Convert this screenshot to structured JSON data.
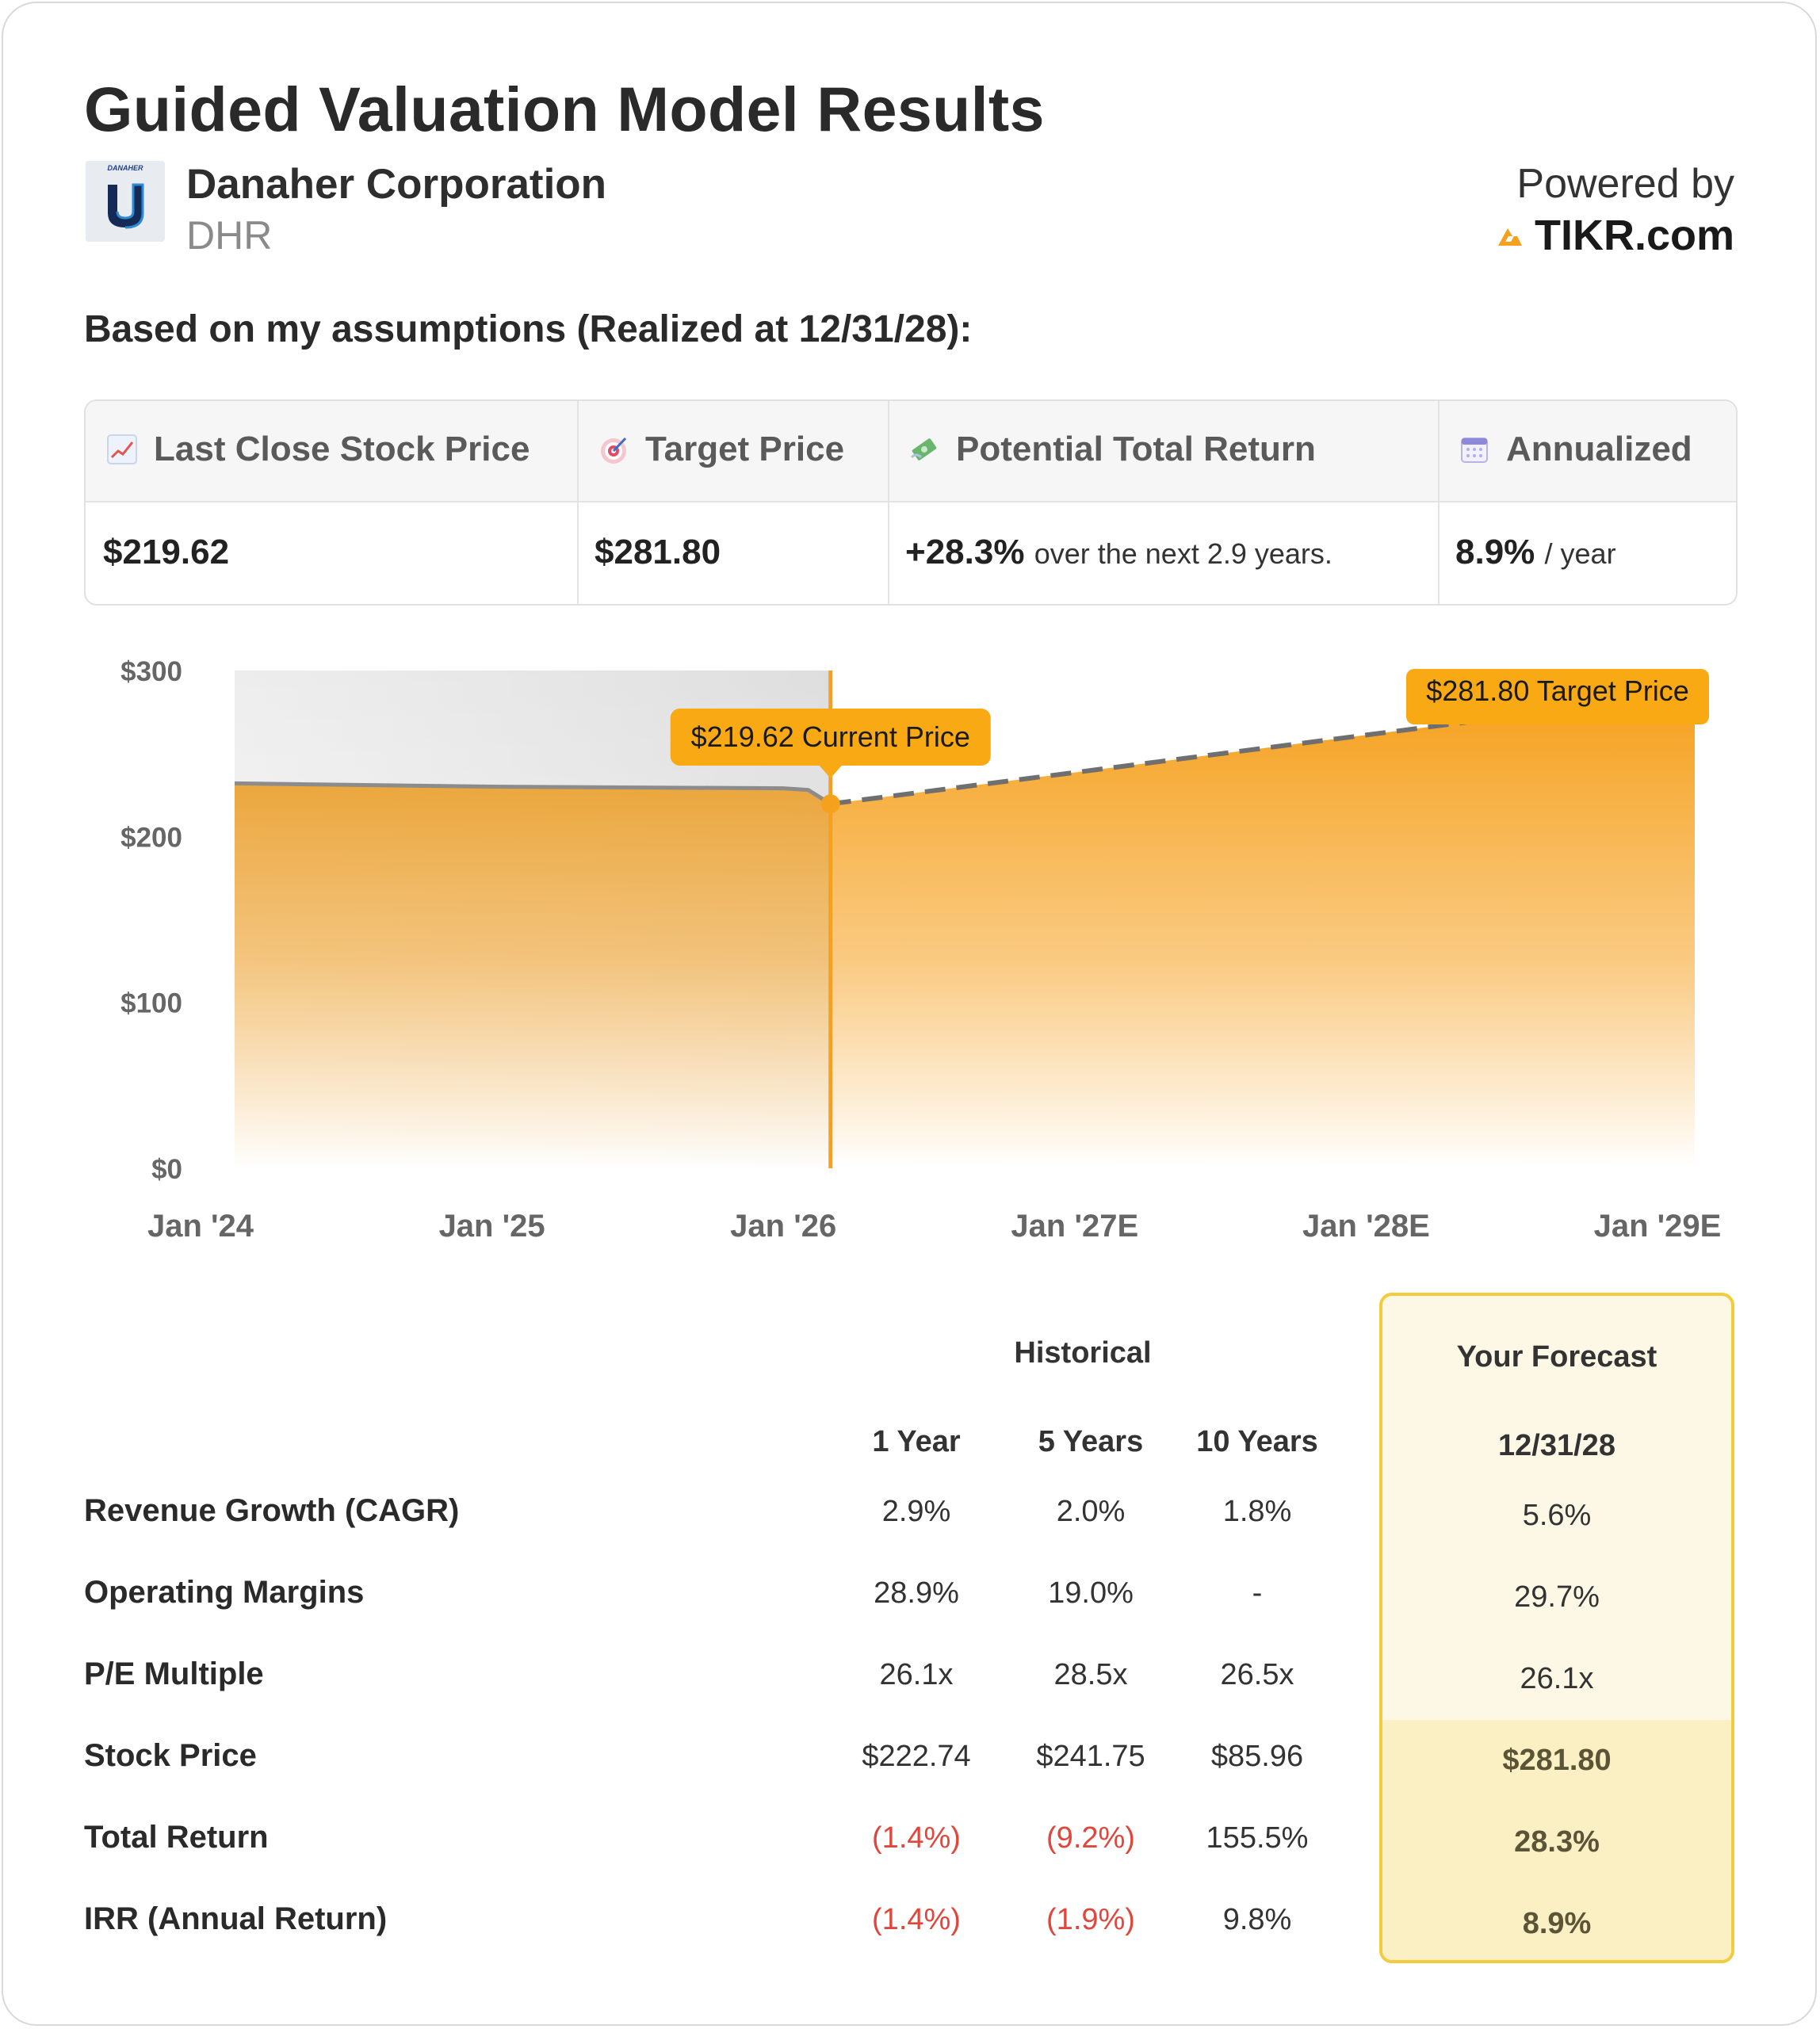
{
  "title": "Guided Valuation Model Results",
  "company": {
    "name": "Danaher Corporation",
    "ticker": "DHR",
    "logo_text": "DANAHER",
    "logo_letter": "U"
  },
  "powered": {
    "label": "Powered by",
    "brand": "TIKR.com"
  },
  "assumption_text": "Based on my assumptions (Realized at 12/31/28):",
  "stats": {
    "last_close": {
      "label": "Last Close Stock Price",
      "value": "$219.62",
      "icon": "chart-increasing-icon"
    },
    "target": {
      "label": "Target Price",
      "value": "$281.80",
      "icon": "target-icon"
    },
    "total_return": {
      "label": "Potential Total Return",
      "value": "+28.3%",
      "suffix": "over the next 2.9 years.",
      "icon": "money-wings-icon"
    },
    "annualized": {
      "label": "Annualized",
      "value": "8.9%",
      "suffix": "/ year",
      "icon": "calendar-icon"
    }
  },
  "chart_data": {
    "type": "area",
    "ylim": [
      0,
      300
    ],
    "y_ticks": [
      "$300",
      "$200",
      "$100",
      "$0"
    ],
    "x_ticks": [
      "Jan '24",
      "Jan '25",
      "Jan '26",
      "Jan '27E",
      "Jan '28E",
      "Jan '29E"
    ],
    "historical": [
      {
        "x": "2024-01",
        "y": 232
      },
      {
        "x": "2025-01",
        "y": 230
      },
      {
        "x": "2026-01",
        "y": 229
      },
      {
        "x": "2026-02",
        "y": 228
      },
      {
        "x": "2026-03",
        "y": 219.62
      }
    ],
    "forecast": [
      {
        "x": "2026-03",
        "y": 219.62
      },
      {
        "x": "2028-12",
        "y": 281.8
      }
    ],
    "annotations": [
      {
        "x": "2026-03",
        "y": 219.62,
        "label": "$219.62 Current Price"
      },
      {
        "x": "2028-12",
        "y": 281.8,
        "label": "$281.80 Target Price"
      }
    ],
    "colors": {
      "area": "#f5a11e",
      "historic_line": "#8c8c8c",
      "forecast_line": "#6f6f6f",
      "marker": "#f5a11e",
      "label_bg": "#f8a913"
    }
  },
  "table": {
    "group_header": "Historical",
    "forecast_header": "Your Forecast",
    "columns": [
      "1 Year",
      "5 Years",
      "10 Years"
    ],
    "forecast_date": "12/31/28",
    "rows": [
      {
        "label": "Revenue Growth (CAGR)",
        "values": [
          "2.9%",
          "2.0%",
          "1.8%"
        ],
        "forecast": "5.6%"
      },
      {
        "label": "Operating Margins",
        "values": [
          "28.9%",
          "19.0%",
          "-"
        ],
        "forecast": "29.7%"
      },
      {
        "label": "P/E Multiple",
        "values": [
          "26.1x",
          "28.5x",
          "26.5x"
        ],
        "forecast": "26.1x"
      },
      {
        "label": "Stock Price",
        "values": [
          "$222.74",
          "$241.75",
          "$85.96"
        ],
        "forecast": "$281.80"
      },
      {
        "label": "Total Return",
        "values": [
          "(1.4%)",
          "(9.2%)",
          "155.5%"
        ],
        "forecast": "28.3%"
      },
      {
        "label": "IRR (Annual Return)",
        "values": [
          "(1.4%)",
          "(1.9%)",
          "9.8%"
        ],
        "forecast": "8.9%"
      }
    ]
  }
}
